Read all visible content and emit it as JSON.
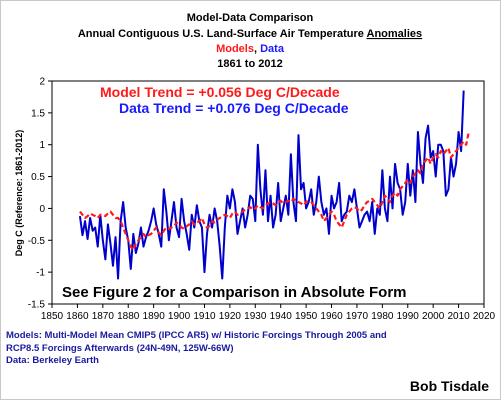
{
  "chart_data": {
    "type": "line",
    "title": {
      "line1": "Model-Data Comparison",
      "line2_prefix": "Annual Contiguous U.S. Land-Surface Air Temperature ",
      "line2_underlined": "Anomalies",
      "line3_models": "Models",
      "line3_sep": ", ",
      "line3_data": "Data",
      "line4": "1861 to 2012"
    },
    "ylabel": "Deg C (Reference: 1861-2012)",
    "xlabel": "",
    "xlim": [
      1850,
      2020
    ],
    "ylim": [
      -1.5,
      2
    ],
    "x_ticks": [
      "1850",
      "1860",
      "1870",
      "1880",
      "1890",
      "1900",
      "1910",
      "1920",
      "1930",
      "1940",
      "1950",
      "1960",
      "1970",
      "1980",
      "1990",
      "2000",
      "2010",
      "2020"
    ],
    "y_ticks": [
      "-1.5",
      "-1",
      "-0.5",
      "0",
      "0.5",
      "1",
      "1.5",
      "2"
    ],
    "grid": false,
    "legend": "none",
    "trend_labels": {
      "model": "Model Trend = +0.056 Deg C/Decade",
      "data": "Data Trend = +0.076 Deg C/Decade"
    },
    "annotation": "See Figure 2 for a Comparison in Absolute Form",
    "series": [
      {
        "name": "Data",
        "color": "#0000cc",
        "style": "solid",
        "x_start": 1861,
        "values": [
          -0.12,
          -0.42,
          -0.2,
          -0.48,
          -0.15,
          -0.35,
          -0.3,
          -0.6,
          -0.1,
          -0.5,
          -0.8,
          -0.25,
          -0.55,
          -0.9,
          -0.45,
          -1.1,
          -0.2,
          0.1,
          -0.3,
          -0.5,
          -0.95,
          -0.4,
          -0.7,
          -0.55,
          -0.3,
          -0.6,
          -0.45,
          -0.35,
          -0.2,
          0.0,
          -0.25,
          -0.4,
          -0.6,
          0.3,
          -0.05,
          -0.5,
          -0.2,
          0.1,
          -0.3,
          -0.45,
          0.15,
          -0.2,
          -0.4,
          -0.65,
          -0.1,
          -0.3,
          0.05,
          -0.2,
          -0.3,
          -1.0,
          -0.4,
          -0.1,
          -0.3,
          0.0,
          -0.2,
          -0.6,
          -1.1,
          -0.3,
          0.2,
          0.0,
          0.3,
          0.1,
          -0.4,
          -0.2,
          0.0,
          -0.3,
          -0.1,
          0.2,
          0.15,
          -0.2,
          1.0,
          0.3,
          -0.1,
          0.6,
          -0.2,
          0.2,
          -0.3,
          -0.1,
          0.4,
          -0.2,
          0.0,
          0.2,
          -0.1,
          0.85,
          0.1,
          -0.2,
          1.15,
          0.3,
          0.4,
          0.0,
          0.1,
          0.3,
          -0.1,
          0.1,
          0.5,
          0.1,
          -0.1,
          0.0,
          -0.4,
          0.2,
          0.0,
          0.1,
          0.4,
          -0.2,
          -0.1,
          -0.05,
          0.2,
          0.1,
          0.3,
          0.0,
          -0.3,
          -0.2,
          -0.1,
          -0.05,
          -0.2,
          0.1,
          -0.4,
          0.0,
          -0.1,
          0.6,
          0.0,
          -0.2,
          0.5,
          0.0,
          0.7,
          0.4,
          0.3,
          -0.1,
          0.1,
          0.7,
          0.2,
          0.6,
          0.1,
          1.2,
          0.7,
          0.4,
          1.1,
          1.3,
          0.8,
          0.9,
          0.5,
          1.0,
          1.0,
          0.9,
          0.2,
          0.3,
          0.8,
          0.5,
          0.7,
          1.2,
          0.9,
          1.85
        ]
      },
      {
        "name": "Models",
        "color": "#ff1a1a",
        "style": "dashed",
        "x_start": 1861,
        "values": [
          -0.05,
          -0.1,
          -0.15,
          -0.12,
          -0.08,
          -0.1,
          -0.12,
          -0.15,
          -0.1,
          -0.1,
          -0.12,
          -0.08,
          -0.05,
          -0.1,
          -0.15,
          -0.15,
          -0.2,
          -0.3,
          -0.4,
          -0.5,
          -0.6,
          -0.65,
          -0.55,
          -0.5,
          -0.45,
          -0.4,
          -0.45,
          -0.42,
          -0.4,
          -0.35,
          -0.3,
          -0.38,
          -0.42,
          -0.35,
          -0.3,
          -0.32,
          -0.3,
          -0.28,
          -0.22,
          -0.25,
          -0.3,
          -0.32,
          -0.28,
          -0.25,
          -0.2,
          -0.25,
          -0.22,
          -0.2,
          -0.15,
          -0.25,
          -0.3,
          -0.28,
          -0.2,
          -0.22,
          -0.18,
          -0.15,
          -0.12,
          -0.1,
          -0.12,
          -0.15,
          -0.08,
          -0.05,
          -0.1,
          -0.08,
          -0.05,
          -0.02,
          0.0,
          0.02,
          -0.02,
          0.0,
          0.05,
          0.02,
          0.0,
          0.05,
          0.08,
          0.1,
          0.08,
          0.05,
          0.1,
          0.12,
          0.08,
          0.1,
          0.12,
          0.1,
          0.15,
          0.12,
          0.1,
          0.08,
          0.05,
          0.1,
          0.12,
          0.1,
          0.05,
          0.0,
          -0.05,
          -0.1,
          -0.2,
          -0.15,
          -0.1,
          -0.05,
          -0.1,
          -0.2,
          -0.25,
          -0.3,
          -0.2,
          -0.1,
          -0.05,
          0.0,
          0.02,
          0.0,
          -0.05,
          -0.02,
          0.05,
          0.1,
          0.12,
          0.15,
          0.1,
          0.05,
          0.0,
          0.1,
          0.2,
          0.15,
          0.1,
          0.2,
          0.25,
          0.2,
          0.3,
          0.35,
          0.4,
          0.45,
          0.4,
          0.5,
          0.55,
          0.6,
          0.55,
          0.7,
          0.75,
          0.8,
          0.7,
          0.8,
          0.85,
          0.8,
          0.9,
          0.85,
          0.9,
          0.95,
          0.8,
          0.85,
          0.9,
          0.95,
          1.0,
          1.05,
          1.0,
          1.2
        ]
      }
    ]
  },
  "notes": {
    "line1": "Models: Multi-Model Mean CMIP5 (IPCC AR5) w/ Historic Forcings Through  2005 and",
    "line2": "RCP8.5 Forcings Afterwards (24N-49N, 125W-66W)",
    "line3": "Data: Berkeley Earth"
  },
  "author": "Bob Tisdale"
}
